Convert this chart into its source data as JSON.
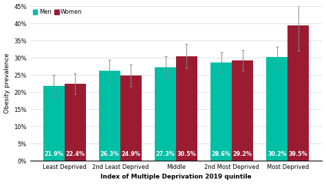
{
  "categories": [
    "Least Deprived",
    "2nd Least Deprived",
    "Middle",
    "2nd Most Deprived",
    "Most Deprived"
  ],
  "men_values": [
    21.9,
    26.3,
    27.3,
    28.6,
    30.2
  ],
  "women_values": [
    22.4,
    24.9,
    30.5,
    29.2,
    39.5
  ],
  "men_errors": [
    3.2,
    3.2,
    3.2,
    3.0,
    3.0
  ],
  "women_errors": [
    3.0,
    3.2,
    3.5,
    3.0,
    7.5
  ],
  "men_color": "#00BFA5",
  "women_color": "#9B1C31",
  "ylabel": "Obesity prevalence",
  "xlabel": "Index of Multiple Deprivation 2019 quintile",
  "ylim": [
    0,
    45
  ],
  "yticks": [
    0,
    5,
    10,
    15,
    20,
    25,
    30,
    35,
    40,
    45
  ],
  "legend_men": "Men",
  "legend_women": "Women",
  "bar_width": 0.38,
  "font_size": 6,
  "label_font_size": 5.8,
  "axis_label_font_size": 6.5
}
